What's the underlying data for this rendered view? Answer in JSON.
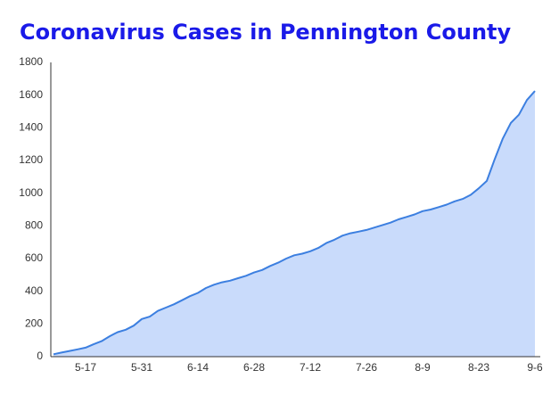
{
  "chart_data": {
    "type": "area",
    "title": "Coronavirus Cases in Pennington County",
    "categories": [
      null,
      null,
      null,
      null,
      "5-17",
      null,
      null,
      null,
      null,
      null,
      null,
      "5-31",
      null,
      null,
      null,
      null,
      null,
      null,
      "6-14",
      null,
      null,
      null,
      null,
      null,
      null,
      "6-28",
      null,
      null,
      null,
      null,
      null,
      null,
      "7-12",
      null,
      null,
      null,
      null,
      null,
      null,
      "7-26",
      null,
      null,
      null,
      null,
      null,
      null,
      "8-9",
      null,
      null,
      null,
      null,
      null,
      null,
      "8-23",
      null,
      null,
      null,
      null,
      null,
      null,
      "9-6"
    ],
    "values": [
      15,
      25,
      35,
      45,
      55,
      76,
      95,
      125,
      150,
      165,
      190,
      230,
      245,
      280,
      300,
      320,
      345,
      370,
      390,
      420,
      440,
      455,
      465,
      480,
      495,
      515,
      530,
      555,
      575,
      600,
      620,
      630,
      645,
      665,
      695,
      715,
      740,
      755,
      765,
      775,
      790,
      805,
      820,
      840,
      855,
      870,
      890,
      900,
      915,
      930,
      950,
      965,
      990,
      1030,
      1075,
      1210,
      1335,
      1430,
      1480,
      1570,
      1625
    ],
    "color": "#3c7fe0",
    "fill": "#c9dbfb",
    "ylim": [
      0,
      1800
    ],
    "yticks": [
      0,
      200,
      400,
      600,
      800,
      1000,
      1200,
      1400,
      1600,
      1800
    ],
    "grid": false
  }
}
